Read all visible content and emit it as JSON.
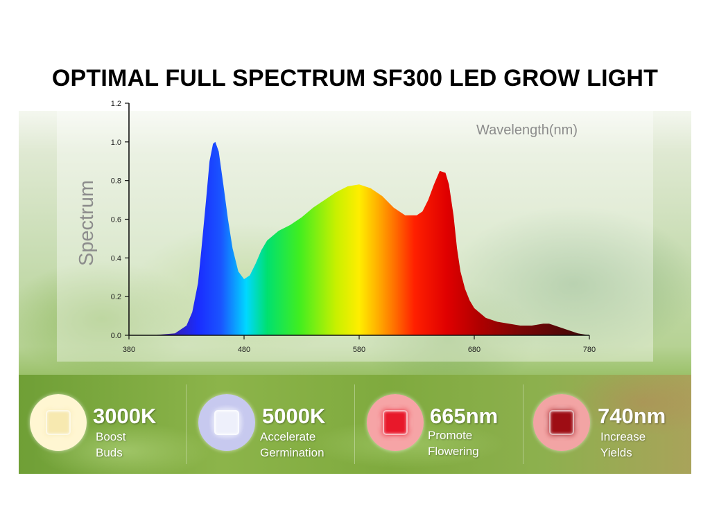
{
  "title": "OPTIMAL FULL SPECTRUM SF300 LED GROW LIGHT",
  "chart_data": {
    "type": "area",
    "title": "OPTIMAL FULL SPECTRUM SF300 LED GROW LIGHT",
    "xlabel": "Wavelength(nm)",
    "ylabel": "Spectrum",
    "xlim": [
      380,
      780
    ],
    "ylim": [
      0,
      1.2
    ],
    "x_ticks": [
      "380",
      "480",
      "580",
      "680",
      "780"
    ],
    "y_ticks": [
      "0.0",
      "0.2",
      "0.4",
      "0.6",
      "0.8",
      "1.0",
      "1.2"
    ],
    "grid": false,
    "series": [
      {
        "x": [
          380,
          400,
          420,
          430,
          435,
          440,
          443,
          447,
          450,
          453,
          455,
          458,
          462,
          466,
          470,
          475,
          480,
          485,
          490,
          495,
          500,
          510,
          520,
          530,
          540,
          550,
          560,
          570,
          580,
          590,
          600,
          610,
          620,
          630,
          635,
          640,
          645,
          650,
          655,
          658,
          662,
          665,
          668,
          672,
          676,
          680,
          690,
          700,
          710,
          720,
          730,
          740,
          745,
          750,
          760,
          770,
          780
        ],
        "values": [
          0.0,
          0.0,
          0.01,
          0.05,
          0.12,
          0.27,
          0.45,
          0.7,
          0.9,
          0.99,
          1.0,
          0.95,
          0.78,
          0.6,
          0.45,
          0.33,
          0.29,
          0.31,
          0.37,
          0.44,
          0.49,
          0.54,
          0.57,
          0.61,
          0.66,
          0.7,
          0.74,
          0.77,
          0.78,
          0.76,
          0.72,
          0.66,
          0.62,
          0.62,
          0.64,
          0.7,
          0.78,
          0.85,
          0.84,
          0.78,
          0.62,
          0.45,
          0.33,
          0.24,
          0.18,
          0.14,
          0.09,
          0.07,
          0.06,
          0.05,
          0.05,
          0.06,
          0.06,
          0.05,
          0.03,
          0.01,
          0.0
        ]
      }
    ]
  },
  "features": [
    {
      "value": "3000K",
      "line1": "Boost",
      "line2": "Buds",
      "color": "#f7e9b0",
      "glow": "#fff6d2"
    },
    {
      "value": "5000K",
      "line1": "Accelerate",
      "line2": "Germination",
      "color": "#eef0fb",
      "glow": "#c7c9ef"
    },
    {
      "value": "665nm",
      "line1": "Promote",
      "line2": "Flowering",
      "color": "#e8182a",
      "glow": "#f6a4a6"
    },
    {
      "value": "740nm",
      "line1": "Increase",
      "line2": "Yields",
      "color": "#9e0d14",
      "glow": "#f2a4a4"
    }
  ]
}
